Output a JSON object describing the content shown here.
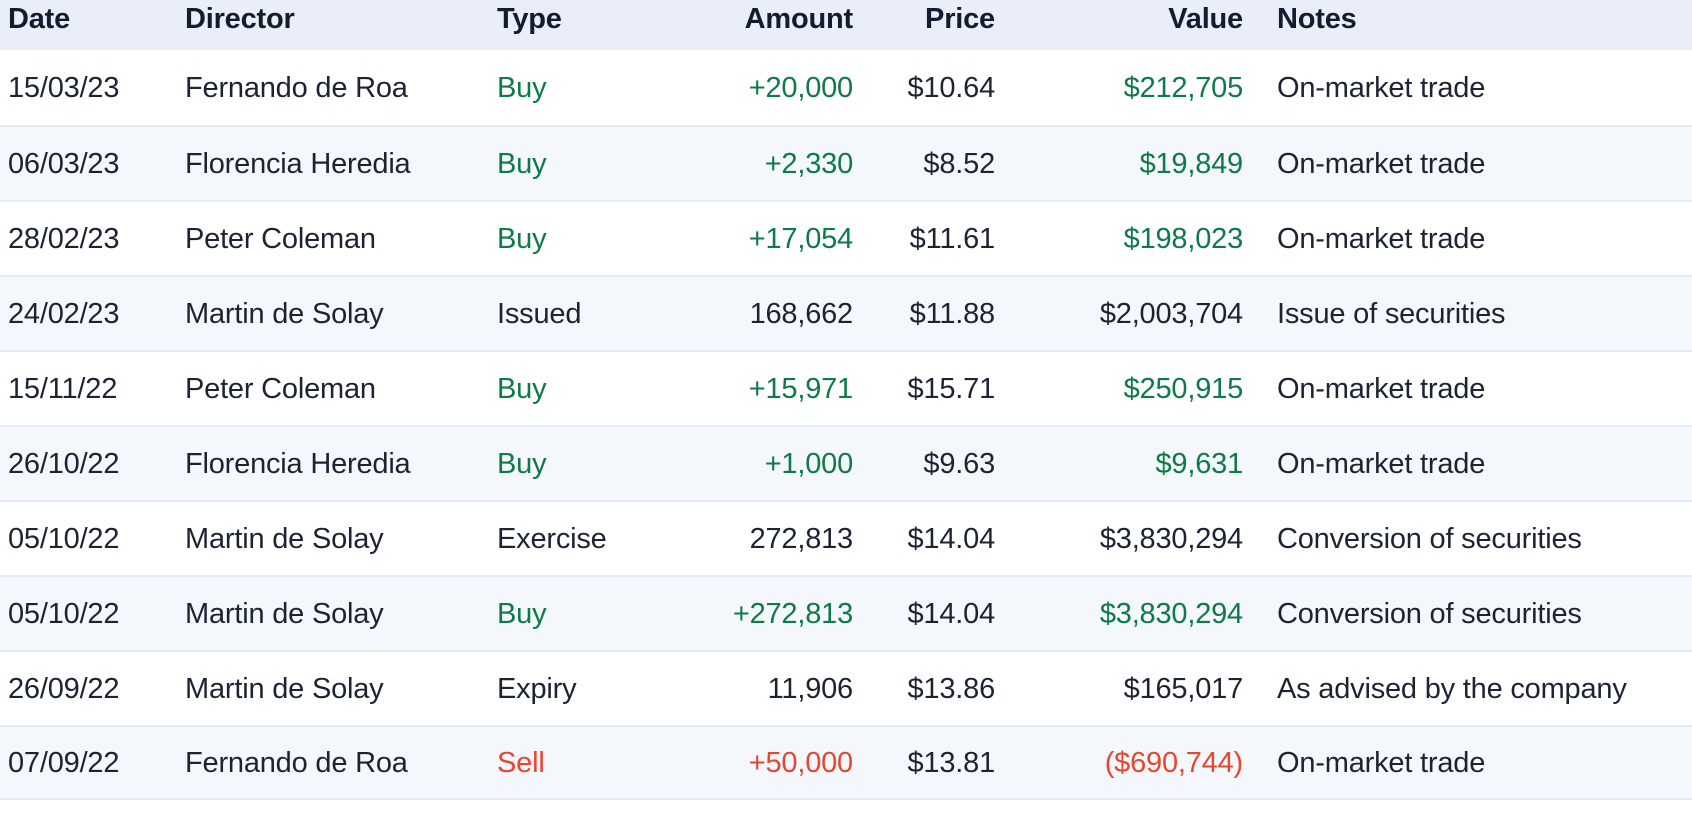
{
  "colors": {
    "buy_green": "#0e7a47",
    "sell_red": "#e8462f",
    "header_bg": "#e9eef9",
    "stripe_bg": "#f4f7fb",
    "row_border": "#e3ebf6",
    "text_dark": "#1c2433",
    "header_text": "#141d2f"
  },
  "table": {
    "columns": [
      {
        "id": "date",
        "label": "Date",
        "align": "left"
      },
      {
        "id": "director",
        "label": "Director",
        "align": "left"
      },
      {
        "id": "type",
        "label": "Type",
        "align": "left"
      },
      {
        "id": "amount",
        "label": "Amount",
        "align": "right"
      },
      {
        "id": "price",
        "label": "Price",
        "align": "right"
      },
      {
        "id": "value",
        "label": "Value",
        "align": "right"
      },
      {
        "id": "notes",
        "label": "Notes",
        "align": "left"
      }
    ],
    "rows": [
      {
        "date": "15/03/23",
        "director": "Fernando de Roa",
        "type": "Buy",
        "amount": "+20,000",
        "price": "$10.64",
        "value": "$212,705",
        "notes": "On-market trade",
        "sentiment": "buy"
      },
      {
        "date": "06/03/23",
        "director": "Florencia Heredia",
        "type": "Buy",
        "amount": "+2,330",
        "price": "$8.52",
        "value": "$19,849",
        "notes": "On-market trade",
        "sentiment": "buy"
      },
      {
        "date": "28/02/23",
        "director": "Peter Coleman",
        "type": "Buy",
        "amount": "+17,054",
        "price": "$11.61",
        "value": "$198,023",
        "notes": "On-market trade",
        "sentiment": "buy"
      },
      {
        "date": "24/02/23",
        "director": "Martin de Solay",
        "type": "Issued",
        "amount": "168,662",
        "price": "$11.88",
        "value": "$2,003,704",
        "notes": "Issue of securities",
        "sentiment": "neutral"
      },
      {
        "date": "15/11/22",
        "director": "Peter Coleman",
        "type": "Buy",
        "amount": "+15,971",
        "price": "$15.71",
        "value": "$250,915",
        "notes": "On-market trade",
        "sentiment": "buy"
      },
      {
        "date": "26/10/22",
        "director": "Florencia Heredia",
        "type": "Buy",
        "amount": "+1,000",
        "price": "$9.63",
        "value": "$9,631",
        "notes": "On-market trade",
        "sentiment": "buy"
      },
      {
        "date": "05/10/22",
        "director": "Martin de Solay",
        "type": "Exercise",
        "amount": "272,813",
        "price": "$14.04",
        "value": "$3,830,294",
        "notes": "Conversion of securities",
        "sentiment": "neutral"
      },
      {
        "date": "05/10/22",
        "director": "Martin de Solay",
        "type": "Buy",
        "amount": "+272,813",
        "price": "$14.04",
        "value": "$3,830,294",
        "notes": "Conversion of securities",
        "sentiment": "buy"
      },
      {
        "date": "26/09/22",
        "director": "Martin de Solay",
        "type": "Expiry",
        "amount": "11,906",
        "price": "$13.86",
        "value": "$165,017",
        "notes": "As advised by the company",
        "sentiment": "neutral"
      },
      {
        "date": "07/09/22",
        "director": "Fernando de Roa",
        "type": "Sell",
        "amount": "+50,000",
        "price": "$13.81",
        "value": "($690,744)",
        "notes": "On-market trade",
        "sentiment": "sell"
      }
    ]
  }
}
